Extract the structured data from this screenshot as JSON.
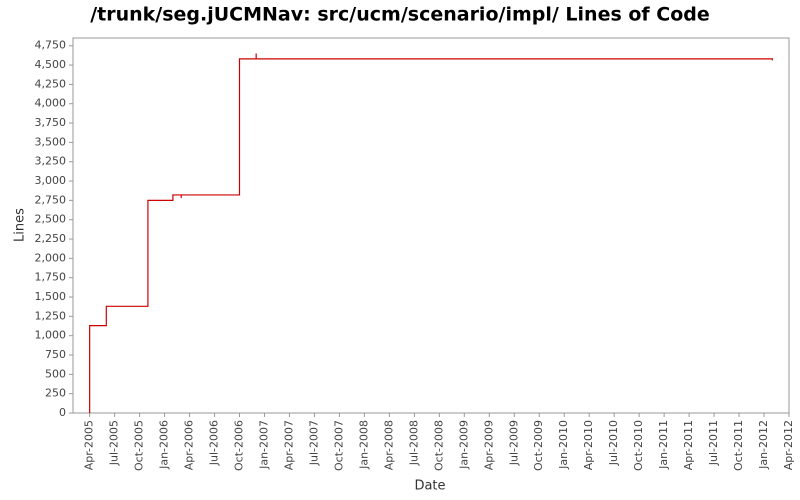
{
  "chart_data": {
    "type": "line",
    "title": "/trunk/seg.jUCMNav: src/ucm/scenario/impl/ Lines of Code",
    "x_label": "Date",
    "y_label": "Lines",
    "x": [
      "2005-04",
      "2005-04",
      "2005-06",
      "2005-06",
      "2005-11",
      "2005-11",
      "2006-02",
      "2006-02",
      "2006-03",
      "2006-03",
      "2006-03",
      "2006-10",
      "2006-10",
      "2006-10",
      "2006-10",
      "2006-12",
      "2006-12",
      "2006-12",
      "2012-02",
      "2012-02"
    ],
    "series": [
      {
        "name": "Lines",
        "color": "#cc0000",
        "values": [
          0,
          1130,
          1130,
          1380,
          1380,
          2750,
          2750,
          2820,
          2820,
          2780,
          2820,
          2820,
          3850,
          3700,
          4580,
          4580,
          4650,
          4580,
          4580,
          4560
        ]
      }
    ],
    "xlim": [
      "2005-02",
      "2012-04"
    ],
    "xticks": [
      {
        "value": "2005-04",
        "label": "Apr-2005"
      },
      {
        "value": "2005-07",
        "label": "Jul-2005"
      },
      {
        "value": "2005-10",
        "label": "Oct-2005"
      },
      {
        "value": "2006-01",
        "label": "Jan-2006"
      },
      {
        "value": "2006-04",
        "label": "Apr-2006"
      },
      {
        "value": "2006-07",
        "label": "Jul-2006"
      },
      {
        "value": "2006-10",
        "label": "Oct-2006"
      },
      {
        "value": "2007-01",
        "label": "Jan-2007"
      },
      {
        "value": "2007-04",
        "label": "Apr-2007"
      },
      {
        "value": "2007-07",
        "label": "Jul-2007"
      },
      {
        "value": "2007-10",
        "label": "Oct-2007"
      },
      {
        "value": "2008-01",
        "label": "Jan-2008"
      },
      {
        "value": "2008-04",
        "label": "Apr-2008"
      },
      {
        "value": "2008-07",
        "label": "Jul-2008"
      },
      {
        "value": "2008-10",
        "label": "Oct-2008"
      },
      {
        "value": "2009-01",
        "label": "Jan-2009"
      },
      {
        "value": "2009-04",
        "label": "Apr-2009"
      },
      {
        "value": "2009-07",
        "label": "Jul-2009"
      },
      {
        "value": "2009-10",
        "label": "Oct-2009"
      },
      {
        "value": "2010-01",
        "label": "Jan-2010"
      },
      {
        "value": "2010-04",
        "label": "Apr-2010"
      },
      {
        "value": "2010-07",
        "label": "Jul-2010"
      },
      {
        "value": "2010-10",
        "label": "Oct-2010"
      },
      {
        "value": "2011-01",
        "label": "Jan-2011"
      },
      {
        "value": "2011-04",
        "label": "Apr-2011"
      },
      {
        "value": "2011-07",
        "label": "Jul-2011"
      },
      {
        "value": "2011-10",
        "label": "Oct-2011"
      },
      {
        "value": "2012-01",
        "label": "Jan-2012"
      },
      {
        "value": "2012-04",
        "label": "Apr-2012"
      }
    ],
    "ylim": [
      0,
      4850
    ],
    "yticks": [
      0,
      250,
      500,
      750,
      {
        "value": 1000,
        "label": "1,000"
      },
      {
        "value": 1250,
        "label": "1,250"
      },
      {
        "value": 1500,
        "label": "1,500"
      },
      {
        "value": 1750,
        "label": "1,750"
      },
      {
        "value": 2000,
        "label": "2,000"
      },
      {
        "value": 2250,
        "label": "2,250"
      },
      {
        "value": 2500,
        "label": "2,500"
      },
      {
        "value": 2750,
        "label": "2,750"
      },
      {
        "value": 3000,
        "label": "3,000"
      },
      {
        "value": 3250,
        "label": "3,250"
      },
      {
        "value": 3500,
        "label": "3,500"
      },
      {
        "value": 3750,
        "label": "3,750"
      },
      {
        "value": 4000,
        "label": "4,000"
      },
      {
        "value": 4250,
        "label": "4,250"
      },
      {
        "value": 4500,
        "label": "4,500"
      },
      {
        "value": 4750,
        "label": "4,750"
      }
    ],
    "grid": false
  }
}
